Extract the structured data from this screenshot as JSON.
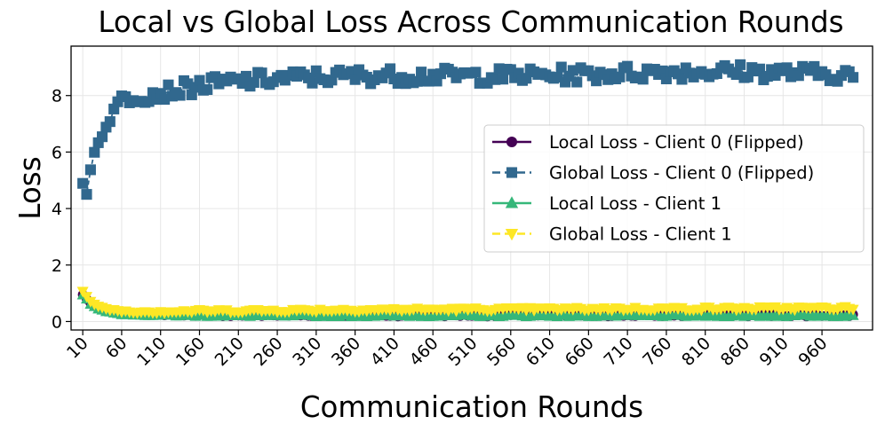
{
  "chart_data": {
    "type": "line",
    "title": "Local vs Global Loss Across Communication Rounds",
    "xlabel": "Communication Rounds",
    "ylabel": "Loss",
    "x_range": [
      10,
      1000
    ],
    "x_step": 5,
    "xlim": [
      -5,
      1025
    ],
    "ylim": [
      -0.3,
      9.75
    ],
    "x_ticks": [
      10,
      60,
      110,
      160,
      210,
      260,
      310,
      360,
      410,
      460,
      510,
      560,
      610,
      660,
      710,
      760,
      810,
      860,
      910,
      960
    ],
    "y_ticks": [
      0,
      2,
      4,
      6,
      8
    ],
    "grid": true,
    "legend_position": "center-right",
    "series": [
      {
        "name": "Local Loss - Client 0 (Flipped)",
        "color": "#440154",
        "line_style": "solid",
        "marker": "circle",
        "anchors": [
          [
            10,
            0.95
          ],
          [
            20,
            0.65
          ],
          [
            30,
            0.5
          ],
          [
            40,
            0.38
          ],
          [
            60,
            0.3
          ],
          [
            100,
            0.26
          ],
          [
            200,
            0.22
          ],
          [
            400,
            0.22
          ],
          [
            700,
            0.22
          ],
          [
            1000,
            0.22
          ]
        ],
        "noise": 0.04
      },
      {
        "name": "Global Loss - Client 0 (Flipped)",
        "color": "#31688e",
        "line_style": "dashed",
        "marker": "square",
        "anchors": [
          [
            10,
            4.85
          ],
          [
            15,
            4.6
          ],
          [
            20,
            5.35
          ],
          [
            25,
            6.0
          ],
          [
            30,
            6.4
          ],
          [
            40,
            6.85
          ],
          [
            50,
            7.5
          ],
          [
            60,
            7.9
          ],
          [
            80,
            8.0
          ],
          [
            110,
            8.1
          ],
          [
            160,
            8.35
          ],
          [
            210,
            8.5
          ],
          [
            260,
            8.6
          ],
          [
            310,
            8.65
          ],
          [
            360,
            8.7
          ],
          [
            460,
            8.7
          ],
          [
            560,
            8.7
          ],
          [
            660,
            8.75
          ],
          [
            760,
            8.85
          ],
          [
            860,
            8.85
          ],
          [
            1000,
            8.75
          ]
        ],
        "noise": 0.28
      },
      {
        "name": "Local Loss - Client 1",
        "color": "#35b779",
        "line_style": "solid",
        "marker": "triangle-up",
        "anchors": [
          [
            10,
            0.95
          ],
          [
            20,
            0.62
          ],
          [
            30,
            0.45
          ],
          [
            40,
            0.35
          ],
          [
            60,
            0.27
          ],
          [
            100,
            0.22
          ],
          [
            200,
            0.2
          ],
          [
            400,
            0.2
          ],
          [
            700,
            0.2
          ],
          [
            1000,
            0.2
          ]
        ],
        "noise": 0.03
      },
      {
        "name": "Global Loss - Client 1",
        "color": "#fde725",
        "line_style": "dashed",
        "marker": "triangle-down",
        "anchors": [
          [
            10,
            1.05
          ],
          [
            20,
            0.7
          ],
          [
            30,
            0.55
          ],
          [
            40,
            0.45
          ],
          [
            60,
            0.37
          ],
          [
            100,
            0.35
          ],
          [
            200,
            0.38
          ],
          [
            400,
            0.42
          ],
          [
            700,
            0.45
          ],
          [
            1000,
            0.48
          ]
        ],
        "noise": 0.06
      }
    ]
  }
}
